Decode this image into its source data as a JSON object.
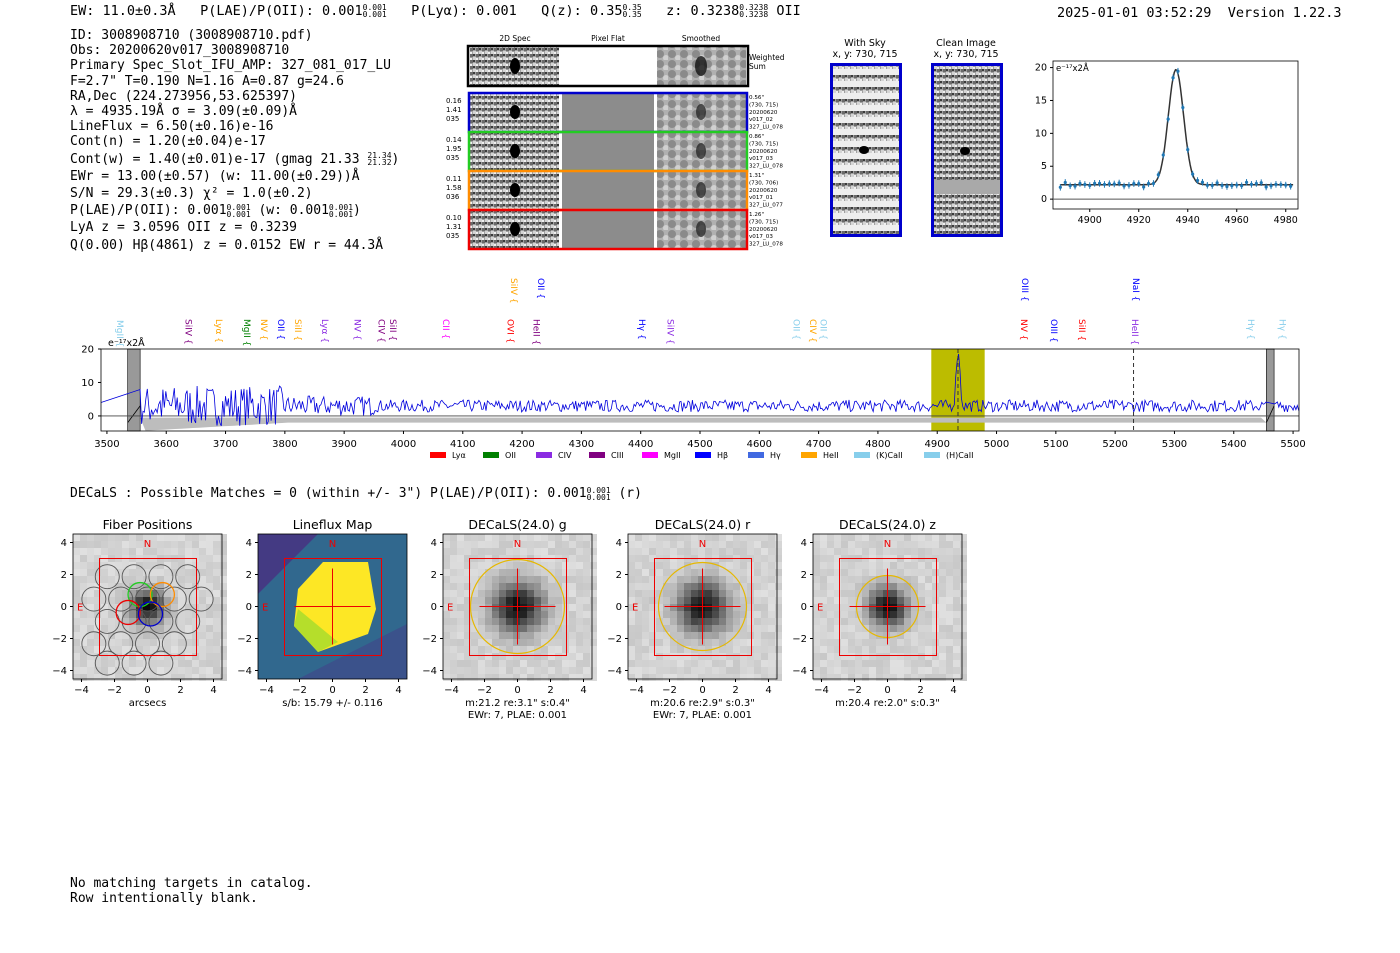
{
  "header": {
    "ew_label": "EW: 11.0±0.3Å",
    "plae_label": "P(LAE)/P(OII): 0.001",
    "plae_hi": "0.001",
    "plae_lo": "0.001",
    "plya_label": "P(Lyα): 0.001",
    "qz_label": "Q(z): 0.35",
    "qz_hi": "0.35",
    "qz_lo": "0.35",
    "z_label": "z: 0.3238",
    "z_hi": "0.3238",
    "z_lo": "0.3238",
    "z_line": "OII",
    "datetime": "2025-01-01 03:52:29",
    "version": "Version 1.22.3"
  },
  "info": {
    "id": "ID: 3008908710 (3008908710.pdf)",
    "obs": "Obs: 20200620v017_3008908710",
    "primary": "Primary Spec_Slot_IFU_AMP: 327_081_017_LU",
    "fwhm": "F=2.7\"  T=0.190  N=1.16  A=0.87  g=24.6",
    "radec": "RA,Dec (224.273956,53.625397)",
    "lambda": "λ = 4935.19Å  σ = 3.09(±0.09)Å",
    "lineflux": "LineFlux = 6.50(±0.16)e-16",
    "contn": "Cont(n) = 1.20(±0.04)e-17",
    "contw": "Cont(w) = 1.40(±0.01)e-17 (gmag 21.33",
    "contw_hi": "21.34",
    "contw_lo": "21.32",
    "contw_end": ")",
    "ewr": "EWr = 13.00(±0.57) (w: 11.00(±0.29))Å",
    "sn": "S/N = 29.3(±0.3)  χ² = 1.0(±0.2)",
    "plae": "P(LAE)/P(OII): 0.001",
    "plae_hi": "0.001",
    "plae_lo": "0.001",
    "plae_w": "(w: 0.001",
    "plae_w_hi": "0.001",
    "plae_w_lo": "0.001",
    "plae_w_end": ")",
    "lya": "LyA z = 3.0596  OII z = 0.3239",
    "q": "Q(0.00) Hβ(4861) z = 0.0152  EW r = 44.3Å"
  },
  "cutouts": {
    "col_2d": "2D Spec",
    "col_flat": "Pixel Flat",
    "col_smooth": "Smoothed",
    "weighted": "Weighted",
    "sum": "Sum",
    "rows": [
      {
        "w": "0.16",
        "f": "1.41",
        "n": "035",
        "d": "0.56\"",
        "xy": "(730, 715)",
        "date": "20200620",
        "v": "v017_02",
        "amp": "327_LU_078",
        "color": "#0000cc"
      },
      {
        "w": "0.14",
        "f": "1.95",
        "n": "035",
        "d": "0.86\"",
        "xy": "(730, 715)",
        "date": "20200620",
        "v": "v017_03",
        "amp": "327_LU_078",
        "color": "#22cc22"
      },
      {
        "w": "0.11",
        "f": "1.58",
        "n": "036",
        "d": "1.31\"",
        "xy": "(730, 706)",
        "date": "20200620",
        "v": "v017_01",
        "amp": "327_LU_077",
        "color": "#ff8c00"
      },
      {
        "w": "0.10",
        "f": "1.31",
        "n": "035",
        "d": "1.26\"",
        "xy": "(730, 715)",
        "date": "20200620",
        "v": "v017_03",
        "amp": "327_LU_078",
        "color": "#ee0000"
      }
    ]
  },
  "withsky": {
    "title": "With Sky",
    "sub": "x, y: 730, 715"
  },
  "clean": {
    "title": "Clean Image",
    "sub": "x, y: 730, 715"
  },
  "zoom_chart": {
    "type": "line",
    "ylabel": "e⁻¹⁷x2Å",
    "xticks": [
      4900,
      4920,
      4940,
      4960,
      4980
    ],
    "yticks": [
      0,
      5,
      10,
      15,
      20
    ],
    "xlim": [
      4885,
      4985
    ],
    "ylim": [
      -1.5,
      21
    ],
    "center": 4935.19,
    "sigma": 3.09,
    "amp": 17.5,
    "continuum": 2.2
  },
  "chart_data": {
    "type": "line",
    "title": "",
    "ylabel": "e⁻¹⁷x2Å",
    "xlim": [
      3490,
      5510
    ],
    "ylim": [
      -4.5,
      20
    ],
    "xticks": [
      3500,
      3600,
      3700,
      3800,
      3900,
      4000,
      4100,
      4200,
      4300,
      4400,
      4500,
      4600,
      4700,
      4800,
      4900,
      5000,
      5100,
      5200,
      5300,
      5400,
      5500
    ],
    "yticks": [
      0,
      10,
      20
    ],
    "highlight": [
      4890,
      4980
    ],
    "masked": [
      [
        3535,
        3556
      ],
      [
        5455,
        5468
      ]
    ],
    "emission_center": 4935.19,
    "dashed": [
      4935,
      5231
    ],
    "lines": [
      {
        "name": "MgII",
        "x": 3512,
        "color": "#87ceeb",
        "row": 1
      },
      {
        "name": "SiIV",
        "x": 3627,
        "color": "#800080",
        "row": 0
      },
      {
        "name": "Lyα",
        "x": 3679,
        "color": "#ffa500",
        "row": 0
      },
      {
        "name": "MgII",
        "x": 3726,
        "color": "#008000",
        "row": 0
      },
      {
        "name": "NV",
        "x": 3755,
        "color": "#ffa500",
        "row": 0
      },
      {
        "name": "OII",
        "x": 3783,
        "color": "#0000ff",
        "row": 0
      },
      {
        "name": "SiII",
        "x": 3812,
        "color": "#ffa500",
        "row": 0
      },
      {
        "name": "Lyα",
        "x": 3858,
        "color": "#8a2be2",
        "row": 0
      },
      {
        "name": "NV",
        "x": 3912,
        "color": "#8a2be2",
        "row": 0
      },
      {
        "name": "CIV",
        "x": 3953,
        "color": "#800080",
        "row": 0
      },
      {
        "name": "SiII",
        "x": 3972,
        "color": "#800080",
        "row": 0
      },
      {
        "name": "CII",
        "x": 4062,
        "color": "#ff00ff",
        "row": 0
      },
      {
        "name": "OVI",
        "x": 4170,
        "color": "#ff0000",
        "row": 0
      },
      {
        "name": "HeII",
        "x": 4214,
        "color": "#800080",
        "row": 0
      },
      {
        "name": "SiIV",
        "x": 4176,
        "color": "#ffa500",
        "row": 2
      },
      {
        "name": "OII",
        "x": 4222,
        "color": "#0000ff",
        "row": 2
      },
      {
        "name": "Hγ",
        "x": 4392,
        "color": "#0000ff",
        "row": 0
      },
      {
        "name": "SiIV",
        "x": 4440,
        "color": "#8a2be2",
        "row": 0
      },
      {
        "name": "OII",
        "x": 4653,
        "color": "#87ceeb",
        "row": 0
      },
      {
        "name": "CIV",
        "x": 4680,
        "color": "#ffa500",
        "row": 0
      },
      {
        "name": "OII",
        "x": 4698,
        "color": "#87ceeb",
        "row": 0
      },
      {
        "name": "NV",
        "x": 5036,
        "color": "#ff0000",
        "row": 0
      },
      {
        "name": "OIII",
        "x": 5087,
        "color": "#0000ff",
        "row": 0
      },
      {
        "name": "SiII",
        "x": 5134,
        "color": "#ff0000",
        "row": 0
      },
      {
        "name": "OIII",
        "x": 5038,
        "color": "#0000ff",
        "row": 2
      },
      {
        "name": "HeII",
        "x": 5223,
        "color": "#8a2be2",
        "row": 0
      },
      {
        "name": "NaI",
        "x": 5225,
        "color": "#0000ff",
        "row": 2
      },
      {
        "name": "Hγ",
        "x": 5419,
        "color": "#87ceeb",
        "row": 0
      },
      {
        "name": "Hγ",
        "x": 5472,
        "color": "#87ceeb",
        "row": 0
      }
    ],
    "legend": [
      {
        "name": "Lyα",
        "color": "#ff0000"
      },
      {
        "name": "OII",
        "color": "#008000"
      },
      {
        "name": "CIV",
        "color": "#8a2be2"
      },
      {
        "name": "CIII",
        "color": "#800080"
      },
      {
        "name": "MgII",
        "color": "#ff00ff"
      },
      {
        "name": "Hβ",
        "color": "#0000ff"
      },
      {
        "name": "Hγ",
        "color": "#4169e1"
      },
      {
        "name": "HeII",
        "color": "#ffa500"
      },
      {
        "name": "(K)CaII",
        "color": "#87ceeb"
      },
      {
        "name": "(H)CaII",
        "color": "#87ceeb"
      }
    ]
  },
  "decals": {
    "line": "DECaLS : Possible Matches = 0 (within +/- 3\")  P(LAE)/P(OII): 0.001",
    "hi": "0.001",
    "lo": "0.001",
    "end": "(r)"
  },
  "stamps": [
    {
      "title": "Fiber Positions",
      "cap1": "arcsecs",
      "cap2": "",
      "type": "fiber"
    },
    {
      "title": "Lineflux Map",
      "cap1": "s/b: 15.79 +/- 0.116",
      "cap2": "",
      "type": "flux"
    },
    {
      "title": "DECaLS(24.0) g",
      "cap1": "m:21.2  re:3.1\"  s:0.4\"",
      "cap2": "EWr: 7, PLAE: 0.001",
      "type": "g"
    },
    {
      "title": "DECaLS(24.0) r",
      "cap1": "m:20.6  re:2.9\"  s:0.3\"",
      "cap2": "EWr: 7, PLAE: 0.001",
      "type": "r"
    },
    {
      "title": "DECaLS(24.0) z",
      "cap1": "m:20.4  re:2.0\"  s:0.3\"",
      "cap2": "",
      "type": "z"
    }
  ],
  "stamp_axis": {
    "ticks": [
      "−4",
      "−2",
      "0",
      "2",
      "4"
    ],
    "north": "N",
    "east": "E"
  },
  "footer": {
    "l1": "No matching targets in catalog.",
    "l2": "Row intentionally blank."
  }
}
